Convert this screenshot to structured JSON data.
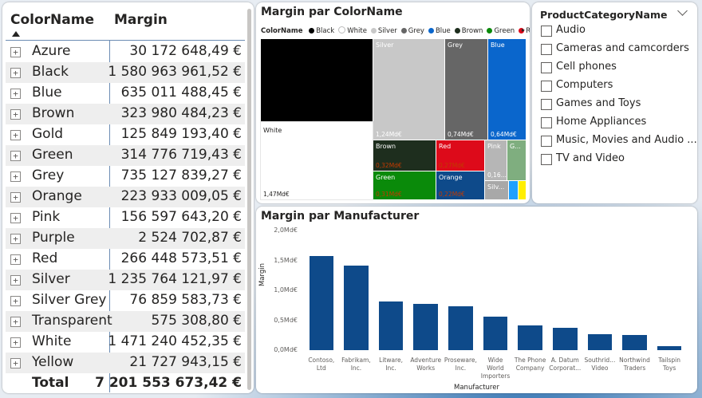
{
  "matrix": {
    "col_name": "ColorName",
    "col_margin": "Margin",
    "rows": [
      {
        "name": "Azure",
        "value": "30 172 648,49 €"
      },
      {
        "name": "Black",
        "value": "1 580 963 961,52 €"
      },
      {
        "name": "Blue",
        "value": "635 011 488,45 €"
      },
      {
        "name": "Brown",
        "value": "323 980 484,23 €"
      },
      {
        "name": "Gold",
        "value": "125 849 193,40 €"
      },
      {
        "name": "Green",
        "value": "314 776 719,43 €"
      },
      {
        "name": "Grey",
        "value": "735 127 839,27 €"
      },
      {
        "name": "Orange",
        "value": "223 933 009,05 €"
      },
      {
        "name": "Pink",
        "value": "156 597 643,20 €"
      },
      {
        "name": "Purple",
        "value": "2 524 702,87 €"
      },
      {
        "name": "Red",
        "value": "266 448 573,51 €"
      },
      {
        "name": "Silver",
        "value": "1 235 764 121,97 €"
      },
      {
        "name": "Silver Grey",
        "value": "76 859 583,73 €"
      },
      {
        "name": "Transparent",
        "value": "575 308,80 €"
      },
      {
        "name": "White",
        "value": "1 471 240 452,35 €"
      },
      {
        "name": "Yellow",
        "value": "21 727 943,15 €"
      }
    ],
    "total_label": "Total",
    "total_value": "7 201 553 673,42 €",
    "expand_symbol": "+"
  },
  "treemap": {
    "title": "Margin par ColorName",
    "legend_title": "ColorName",
    "legend": [
      {
        "name": "Black",
        "color": "#000000"
      },
      {
        "name": "White",
        "color": "#ffffff"
      },
      {
        "name": "Silver",
        "color": "#c8c8c8"
      },
      {
        "name": "Grey",
        "color": "#666666"
      },
      {
        "name": "Blue",
        "color": "#0a66cc"
      },
      {
        "name": "Brown",
        "color": "#1e2e1e"
      },
      {
        "name": "Green",
        "color": "#0a8a0a"
      },
      {
        "name": "Red",
        "color": "#dd0a1a"
      }
    ],
    "legend_more": "▸",
    "tiles": {
      "black": {
        "label": "",
        "value": ""
      },
      "white": {
        "label": "White",
        "value": "1,47Md€"
      },
      "silver": {
        "label": "Silver",
        "value": "1,24Md€"
      },
      "grey": {
        "label": "Grey",
        "value": "0,74Md€"
      },
      "blue": {
        "label": "Blue",
        "value": "0,64Md€"
      },
      "brown": {
        "label": "Brown",
        "value": "0,32Md€"
      },
      "red": {
        "label": "Red",
        "value": "0,27Md€"
      },
      "pink": {
        "label": "Pink",
        "value": "0,16..."
      },
      "g": {
        "label": "G...",
        "value": ""
      },
      "green": {
        "label": "Green",
        "value": "0,31Md€"
      },
      "orange": {
        "label": "Orange",
        "value": "0,22Md€"
      },
      "silv": {
        "label": "Silv...",
        "value": ""
      }
    },
    "tile_colors": {
      "black": "#000000",
      "white": "#ffffff",
      "silver": "#c8c8c8",
      "grey": "#666666",
      "blue": "#0a66cc",
      "brown": "#1e2e1e",
      "red": "#dd0a1a",
      "pink": "#b6b6b6",
      "g": "#7fae7f",
      "green": "#0a8a0a",
      "orange": "#0e4a8a",
      "silv": "#a8a8a8",
      "azure": "#1fa0ff",
      "yellow": "#ffee00"
    }
  },
  "slicer": {
    "title": "ProductCategoryName",
    "items": [
      "Audio",
      "Cameras and camcorders",
      "Cell phones",
      "Computers",
      "Games and Toys",
      "Home Appliances",
      "Music, Movies and Audio ...",
      "TV and Video"
    ]
  },
  "chart_data": {
    "type": "bar",
    "title": "Margin par Manufacturer",
    "xlabel": "Manufacturer",
    "ylabel": "Margin",
    "ylim": [
      0,
      2.0
    ],
    "yticks": [
      "0,0Md€",
      "0,5Md€",
      "1,0Md€",
      "1,5Md€",
      "2,0Md€"
    ],
    "ytick_values": [
      0,
      0.5,
      1.0,
      1.5,
      2.0
    ],
    "categories": [
      "Contoso, Ltd",
      "Fabrikam, Inc.",
      "Litware, Inc.",
      "Adventure Works",
      "Proseware, Inc.",
      "Wide World Importers",
      "The Phone Company",
      "A. Datum Corporat...",
      "Southrid... Video",
      "Northwind Traders",
      "Tailspin Toys"
    ],
    "category_lines": [
      [
        "Contoso,",
        "Ltd"
      ],
      [
        "Fabrikam,",
        "Inc."
      ],
      [
        "Litware,",
        "Inc."
      ],
      [
        "Adventure",
        "Works"
      ],
      [
        "Proseware,",
        "Inc."
      ],
      [
        "Wide",
        "World",
        "Importers"
      ],
      [
        "The Phone",
        "Company"
      ],
      [
        "A. Datum",
        "Corporat..."
      ],
      [
        "Southrid...",
        "Video"
      ],
      [
        "Northwind",
        "Traders"
      ],
      [
        "Tailspin",
        "Toys"
      ]
    ],
    "values": [
      1.57,
      1.42,
      0.82,
      0.78,
      0.74,
      0.56,
      0.42,
      0.38,
      0.27,
      0.25,
      0.07
    ],
    "bar_color": "#0e4a8a"
  }
}
